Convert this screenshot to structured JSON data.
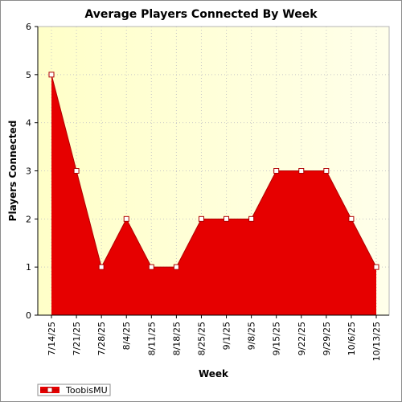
{
  "chart_data": {
    "type": "area",
    "title": "Average Players Connected By Week",
    "xlabel": "Week",
    "ylabel": "Players Connected",
    "ylim": [
      0,
      6
    ],
    "y_ticks": [
      0,
      1,
      2,
      3,
      4,
      5,
      6
    ],
    "grid": true,
    "legend_position": "bottom-left",
    "categories": [
      "7/14/25",
      "7/21/25",
      "7/28/25",
      "8/4/25",
      "8/11/25",
      "8/18/25",
      "8/25/25",
      "9/1/25",
      "9/8/25",
      "9/15/25",
      "9/22/25",
      "9/29/25",
      "10/6/25",
      "10/13/25"
    ],
    "series": [
      {
        "name": "ToobisMU",
        "values": [
          5,
          3,
          1,
          2,
          1,
          1,
          2,
          2,
          2,
          3,
          3,
          3,
          2,
          1
        ],
        "color": "#e60000"
      }
    ]
  }
}
